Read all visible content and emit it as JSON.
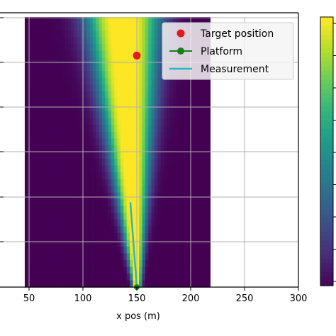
{
  "chart_data": {
    "type": "heatmap",
    "xlabel": "x pos (m)",
    "x_ticks": [
      50,
      100,
      150,
      200,
      250,
      300
    ],
    "xlim": [
      26,
      300
    ],
    "ylim": [
      0,
      350
    ],
    "colormap": "viridis",
    "heatmap": {
      "x_range": [
        46,
        218
      ],
      "beam": {
        "apex": [
          150,
          0
        ],
        "top_center": [
          137,
          350
        ],
        "top_half_width": [
          10,
          25
        ]
      }
    },
    "series": [
      {
        "name": "Target position",
        "marker": "circle",
        "color": "#e41a1c",
        "points": [
          [
            150,
            300
          ]
        ]
      },
      {
        "name": "Platform",
        "marker": "circle",
        "color": "#1a7f1a",
        "points": [
          [
            150,
            0
          ]
        ]
      },
      {
        "name": "Measurement",
        "marker": "line",
        "color": "#29b7c4",
        "points": [
          [
            150,
            0
          ],
          [
            144,
            110
          ]
        ]
      }
    ],
    "legend_position": "top-right",
    "grid": true,
    "colorbar": true
  }
}
